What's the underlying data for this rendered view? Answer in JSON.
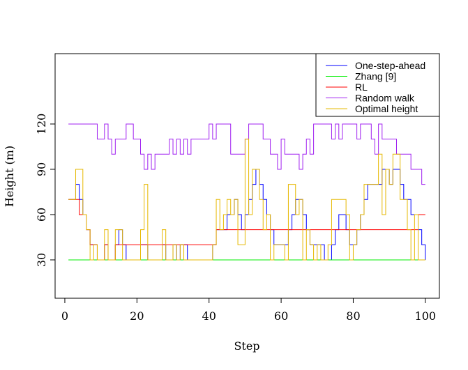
{
  "chart_data": {
    "type": "line",
    "title": "",
    "xlabel": "Step",
    "ylabel": "Height (m)",
    "xlim": [
      -2.7,
      103.9
    ],
    "ylim": [
      4.6,
      166.6
    ],
    "xticks": [
      0,
      20,
      40,
      60,
      80,
      100
    ],
    "yticks": [
      30,
      60,
      90,
      120
    ],
    "grid": false,
    "legend_position": "top-right",
    "x_start": 1,
    "series": [
      {
        "name": "One-step-ahead",
        "color": "#0000ff",
        "values": [
          70,
          70,
          80,
          70,
          60,
          50,
          40,
          40,
          30,
          30,
          40,
          30,
          30,
          40,
          50,
          40,
          30,
          30,
          30,
          30,
          40,
          40,
          30,
          30,
          30,
          30,
          40,
          30,
          30,
          40,
          30,
          40,
          40,
          30,
          30,
          30,
          30,
          30,
          30,
          30,
          40,
          50,
          50,
          50,
          60,
          60,
          70,
          60,
          50,
          60,
          70,
          80,
          90,
          80,
          70,
          60,
          50,
          40,
          40,
          40,
          40,
          50,
          60,
          70,
          70,
          60,
          50,
          40,
          40,
          40,
          40,
          30,
          30,
          40,
          50,
          60,
          60,
          50,
          40,
          40,
          50,
          60,
          70,
          80,
          80,
          80,
          80,
          90,
          90,
          80,
          90,
          90,
          80,
          70,
          70,
          60,
          60,
          50,
          40,
          30
        ]
      },
      {
        "name": "Zhang [9]",
        "color": "#00ee00",
        "values": [
          30,
          30,
          30,
          30,
          30,
          30,
          30,
          30,
          30,
          30,
          30,
          30,
          30,
          30,
          30,
          30,
          30,
          30,
          30,
          30,
          30,
          30,
          30,
          30,
          30,
          30,
          30,
          30,
          30,
          30,
          30,
          30,
          30,
          30,
          30,
          30,
          30,
          30,
          30,
          30,
          30,
          30,
          30,
          30,
          30,
          30,
          30,
          30,
          30,
          30,
          30,
          30,
          30,
          30,
          30,
          30,
          30,
          30,
          30,
          30,
          30,
          30,
          30,
          30,
          30,
          30,
          30,
          30,
          30,
          30,
          30,
          30,
          30,
          30,
          30,
          30,
          30,
          30,
          30,
          30,
          30,
          30,
          30,
          30,
          30,
          30,
          30,
          30,
          30,
          30,
          30,
          30,
          30,
          30,
          30,
          30,
          30,
          30,
          30,
          30
        ]
      },
      {
        "name": "RL",
        "color": "#ff0000",
        "values": [
          70,
          70,
          70,
          60,
          60,
          50,
          40,
          40,
          30,
          30,
          40,
          30,
          30,
          40,
          40,
          40,
          40,
          40,
          40,
          40,
          40,
          40,
          40,
          40,
          40,
          40,
          40,
          40,
          40,
          40,
          40,
          40,
          40,
          40,
          40,
          40,
          40,
          40,
          40,
          40,
          40,
          50,
          50,
          50,
          50,
          50,
          50,
          50,
          50,
          50,
          50,
          50,
          50,
          50,
          50,
          50,
          50,
          50,
          50,
          50,
          50,
          50,
          50,
          50,
          50,
          50,
          50,
          50,
          50,
          50,
          50,
          50,
          50,
          50,
          50,
          50,
          50,
          50,
          50,
          50,
          50,
          50,
          50,
          50,
          50,
          50,
          50,
          50,
          50,
          50,
          50,
          50,
          50,
          50,
          50,
          50,
          50,
          60,
          60,
          60
        ]
      },
      {
        "name": "Random walk",
        "color": "#a020f0",
        "values": [
          120,
          120,
          120,
          120,
          120,
          120,
          120,
          120,
          110,
          110,
          120,
          110,
          100,
          110,
          110,
          110,
          120,
          120,
          110,
          110,
          100,
          90,
          100,
          90,
          100,
          100,
          100,
          100,
          110,
          100,
          110,
          100,
          110,
          100,
          110,
          110,
          110,
          110,
          110,
          120,
          110,
          120,
          120,
          120,
          120,
          100,
          100,
          100,
          100,
          110,
          120,
          120,
          120,
          120,
          110,
          110,
          100,
          100,
          90,
          110,
          100,
          100,
          100,
          100,
          90,
          100,
          110,
          100,
          120,
          120,
          120,
          120,
          120,
          110,
          120,
          110,
          120,
          120,
          120,
          120,
          110,
          120,
          120,
          120,
          110,
          100,
          120,
          110,
          110,
          110,
          110,
          100,
          100,
          100,
          100,
          90,
          90,
          90,
          80,
          80
        ]
      },
      {
        "name": "Optimal height",
        "color": "#e6b800",
        "values": [
          70,
          70,
          90,
          90,
          60,
          50,
          30,
          40,
          30,
          30,
          50,
          30,
          30,
          50,
          50,
          30,
          30,
          30,
          30,
          30,
          50,
          80,
          30,
          30,
          30,
          30,
          50,
          30,
          30,
          40,
          30,
          40,
          30,
          30,
          30,
          30,
          30,
          30,
          30,
          30,
          40,
          70,
          50,
          60,
          70,
          60,
          70,
          40,
          40,
          110,
          60,
          90,
          90,
          70,
          50,
          60,
          30,
          40,
          40,
          40,
          30,
          80,
          80,
          60,
          70,
          30,
          50,
          40,
          30,
          40,
          30,
          30,
          40,
          70,
          70,
          70,
          70,
          60,
          30,
          40,
          50,
          60,
          80,
          80,
          80,
          80,
          100,
          60,
          90,
          80,
          100,
          100,
          70,
          70,
          50,
          30,
          60,
          30,
          30,
          30
        ]
      }
    ]
  }
}
